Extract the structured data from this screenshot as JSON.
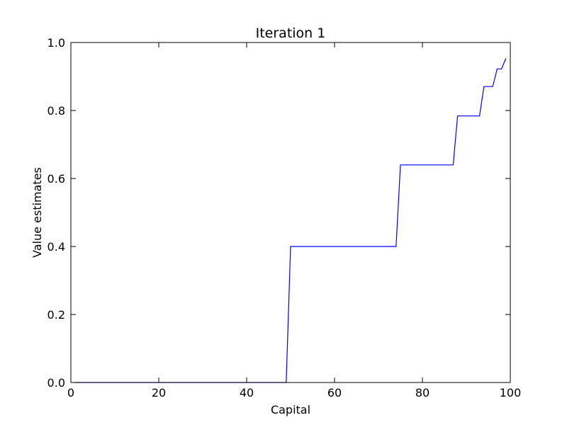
{
  "chart_data": {
    "type": "line",
    "title": "Iteration 1",
    "xlabel": "Capital",
    "ylabel": "Value estimates",
    "xlim": [
      0,
      100
    ],
    "ylim": [
      0.0,
      1.0
    ],
    "xticks": [
      "0",
      "20",
      "40",
      "60",
      "80",
      "100"
    ],
    "yticks": [
      "0.0",
      "0.2",
      "0.4",
      "0.6",
      "0.8",
      "1.0"
    ],
    "grid": false,
    "line_color": "#0000ff",
    "series": [
      {
        "x": [
          1,
          49,
          50,
          74,
          75,
          87,
          88,
          93,
          94,
          96,
          97,
          98,
          99
        ],
        "values": [
          0.0,
          0.0,
          0.4,
          0.4,
          0.64,
          0.64,
          0.784,
          0.784,
          0.8704,
          0.8704,
          0.92224,
          0.92224,
          0.953344
        ]
      }
    ]
  }
}
